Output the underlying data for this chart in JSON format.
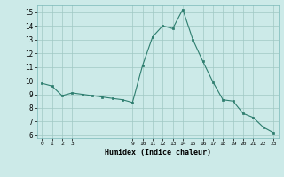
{
  "x": [
    0,
    1,
    2,
    3,
    4,
    5,
    6,
    7,
    8,
    9,
    10,
    11,
    12,
    13,
    14,
    15,
    16,
    17,
    18,
    19,
    20,
    21,
    22,
    23
  ],
  "y": [
    9.8,
    9.6,
    8.9,
    9.1,
    9.0,
    8.9,
    8.8,
    8.7,
    8.6,
    8.4,
    11.1,
    13.2,
    14.0,
    13.8,
    15.2,
    13.0,
    11.4,
    9.9,
    8.6,
    8.5,
    7.6,
    7.3,
    6.6,
    6.2
  ],
  "xlabel": "Humidex (Indice chaleur)",
  "xlim": [
    -0.5,
    23.5
  ],
  "ylim": [
    5.8,
    15.5
  ],
  "yticks": [
    6,
    7,
    8,
    9,
    10,
    11,
    12,
    13,
    14,
    15
  ],
  "xticks": [
    0,
    1,
    2,
    3,
    9,
    10,
    11,
    12,
    13,
    14,
    15,
    16,
    17,
    18,
    19,
    20,
    21,
    22,
    23
  ],
  "line_color": "#2d7d6e",
  "marker_color": "#2d7d6e",
  "bg_color": "#cceae8",
  "grid_color": "#a0c8c4",
  "fig_bg": "#cceae8"
}
